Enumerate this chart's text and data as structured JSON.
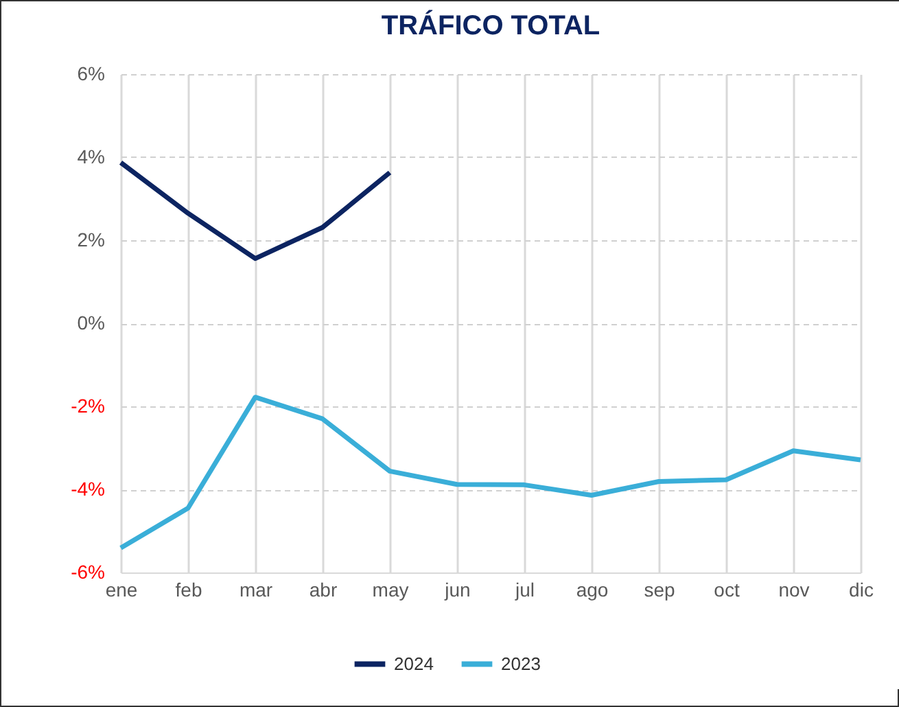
{
  "chart_data": {
    "type": "line",
    "title": "TRÁFICO TOTAL",
    "categories": [
      "ene",
      "feb",
      "mar",
      "abr",
      "may",
      "jun",
      "jul",
      "ago",
      "sep",
      "oct",
      "nov",
      "dic"
    ],
    "series": [
      {
        "name": "2024",
        "color": "#0c2461",
        "values": [
          3.87,
          2.65,
          1.56,
          2.31,
          3.63,
          null,
          null,
          null,
          null,
          null,
          null,
          null
        ]
      },
      {
        "name": "2023",
        "color": "#3aaed8",
        "values": [
          -5.41,
          -4.45,
          -1.78,
          -2.3,
          -3.56,
          -3.88,
          -3.89,
          -4.14,
          -3.81,
          -3.77,
          -3.07,
          -3.29
        ]
      }
    ],
    "ylim": [
      -6,
      6
    ],
    "yticks": [
      {
        "value": -6,
        "label": "-6%"
      },
      {
        "value": -4,
        "label": "-4%"
      },
      {
        "value": -2,
        "label": "-2%"
      },
      {
        "value": 0,
        "label": "0%"
      },
      {
        "value": 2,
        "label": "2%"
      },
      {
        "value": 4,
        "label": "4%"
      },
      {
        "value": 6,
        "label": "6%"
      }
    ],
    "grid": true,
    "legend": "bottom",
    "marker": "none",
    "line_style": "solid"
  }
}
